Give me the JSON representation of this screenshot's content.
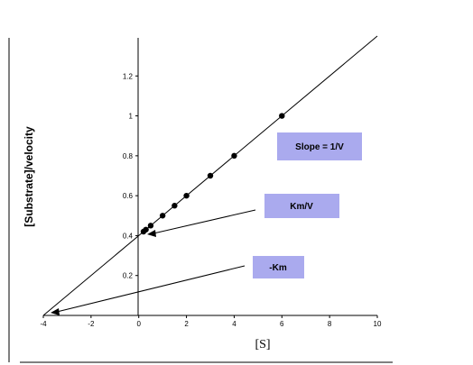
{
  "chart_data": {
    "type": "scatter",
    "xlabel": "[S]",
    "ylabel": "[Substrate]/velocity",
    "xlim": [
      -4,
      10
    ],
    "ylim": [
      0,
      1.4
    ],
    "x_ticks": [
      -4,
      -2,
      0,
      2,
      4,
      6,
      8,
      10
    ],
    "y_ticks": [
      0.2,
      0.4,
      0.6,
      0.8,
      1,
      1.2
    ],
    "y_tick_labels": [
      "0.2",
      "0.4",
      "0.6",
      "0.8",
      "1",
      "1.2"
    ],
    "series": [
      {
        "points": [
          {
            "x": 0.2,
            "y": 0.42
          },
          {
            "x": 0.3,
            "y": 0.43
          },
          {
            "x": 0.5,
            "y": 0.45
          },
          {
            "x": 1,
            "y": 0.5
          },
          {
            "x": 1.5,
            "y": 0.55
          },
          {
            "x": 2,
            "y": 0.6
          },
          {
            "x": 3,
            "y": 0.7
          },
          {
            "x": 4,
            "y": 0.8
          },
          {
            "x": 6,
            "y": 1.0
          }
        ]
      }
    ],
    "fit_line": {
      "slope": 0.1,
      "intercept": 0.4,
      "x_range": [
        -4,
        10
      ]
    },
    "annotations": [
      {
        "text": "Slope = 1/V",
        "points_to": null
      },
      {
        "text": "Km/V",
        "points_to": {
          "x": 0,
          "y": 0.4
        }
      },
      {
        "text": "-Km",
        "points_to": {
          "x": -4,
          "y": 0
        }
      }
    ],
    "colors": {
      "box_fill": "#aaaaee",
      "line": "#000000",
      "points": "#000000"
    }
  }
}
